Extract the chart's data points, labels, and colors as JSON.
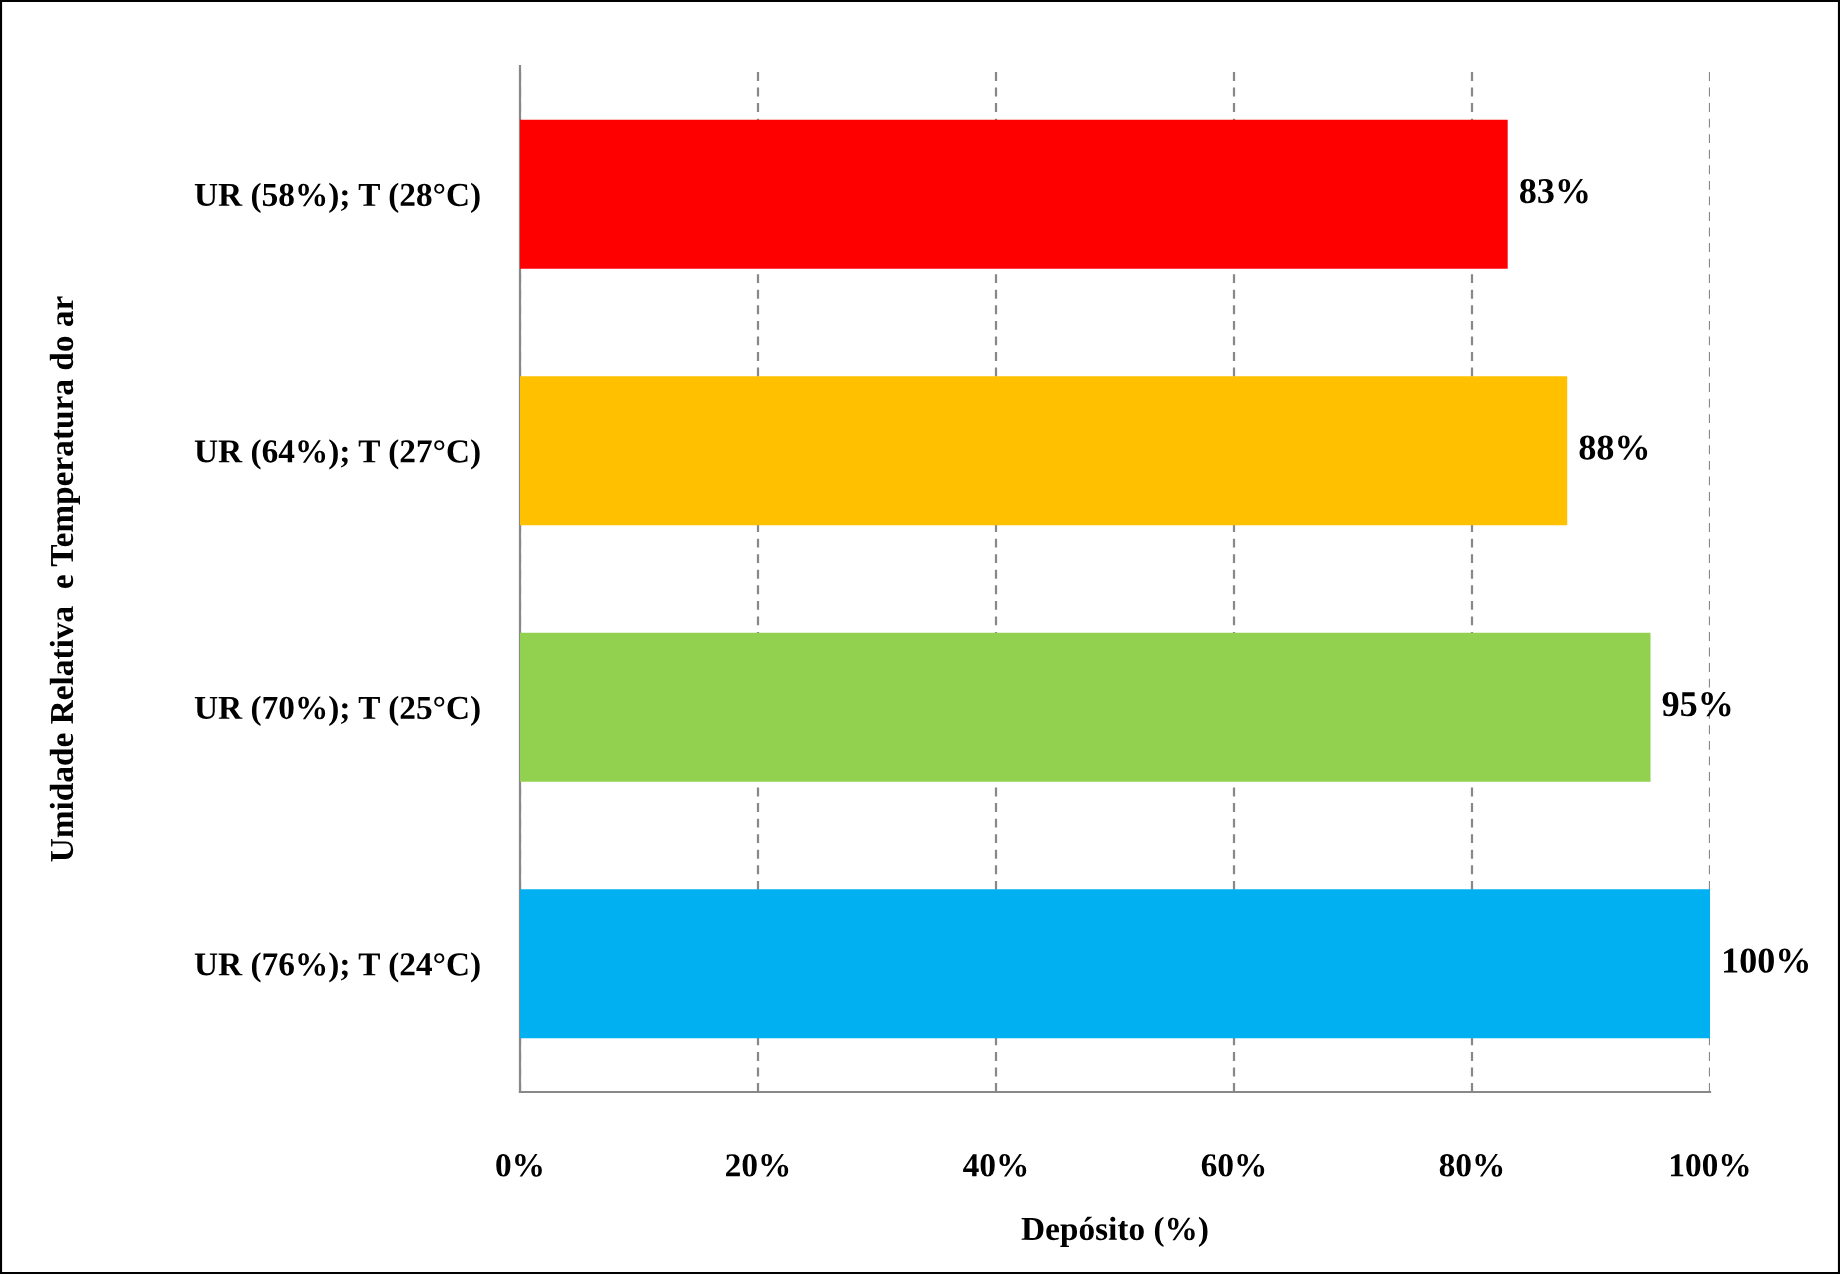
{
  "chart_data": {
    "type": "bar",
    "orientation": "horizontal",
    "xlabel": "Depósito (%)",
    "ylabel": "Umidade Relativa  e Temperatura do ar",
    "categories": [
      "UR (58%); T (28°C)",
      "UR (64%); T (27°C)",
      "UR (70%); T (25°C)",
      "UR (76%); T (24°C)"
    ],
    "values": [
      83,
      88,
      95,
      100
    ],
    "colors": [
      "#ff0000",
      "#ffc000",
      "#92d050",
      "#00b0f0"
    ],
    "value_labels": [
      "83%",
      "88%",
      "95%",
      "100%"
    ],
    "xlim": [
      0,
      100
    ],
    "xticks": [
      {
        "value": 0,
        "label": "0%"
      },
      {
        "value": 20,
        "label": "20%"
      },
      {
        "value": 40,
        "label": "40%"
      },
      {
        "value": 60,
        "label": "60%"
      },
      {
        "value": 80,
        "label": "80%"
      },
      {
        "value": 100,
        "label": "100%"
      }
    ],
    "grid": "x",
    "legend": false
  }
}
